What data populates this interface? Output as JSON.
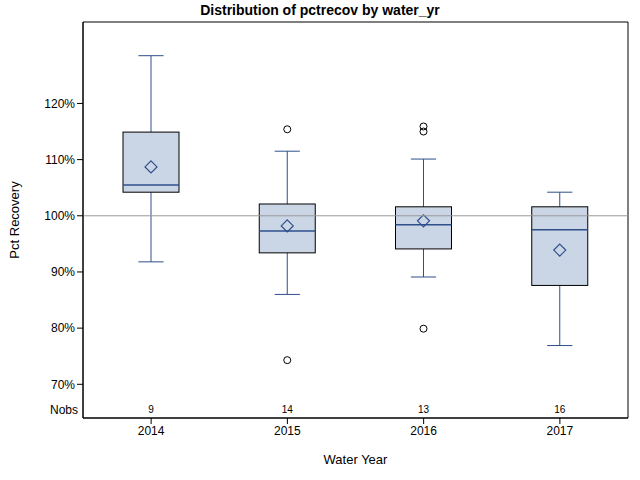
{
  "chart_data": {
    "type": "box",
    "title": "Distribution of pctrecov by water_yr",
    "x_label": "Water Year",
    "y_label": "Pct Recovery",
    "categories": [
      "2014",
      "2015",
      "2016",
      "2017"
    ],
    "min": [
      91.8,
      86.0,
      89.1,
      76.9
    ],
    "q1": [
      104.2,
      93.4,
      94.1,
      87.6
    ],
    "median": [
      105.5,
      97.3,
      98.4,
      97.5
    ],
    "q3": [
      114.9,
      102.1,
      101.6,
      101.6
    ],
    "max": [
      128.5,
      111.5,
      110.1,
      104.2
    ],
    "mean": [
      108.7,
      98.2,
      99.1,
      93.9
    ],
    "outliers": [
      [],
      [
        115.4,
        74.3
      ],
      [
        115.9,
        115.0,
        79.9
      ],
      []
    ],
    "nobs_label": "Nobs",
    "nobs": [
      9,
      14,
      13,
      16
    ],
    "reference_line": 100,
    "ylim": [
      64,
      134.5
    ],
    "yticks": [
      {
        "value": 70,
        "label": "70%"
      },
      {
        "value": 80,
        "label": "80%"
      },
      {
        "value": 90,
        "label": "90%"
      },
      {
        "value": 100,
        "label": "100%"
      },
      {
        "value": 110,
        "label": "110%"
      },
      {
        "value": 120,
        "label": "120%"
      }
    ],
    "color": "#cad5e5",
    "marker": "diamond"
  }
}
